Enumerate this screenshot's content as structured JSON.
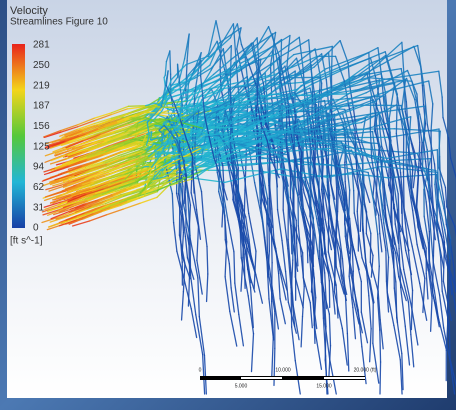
{
  "legend": {
    "title": "Velocity",
    "subtitle": "Streamlines Figure 10",
    "ticks": [
      "281",
      "250",
      "219",
      "187",
      "156",
      "125",
      "94",
      "62",
      "31",
      "0"
    ],
    "unit": "[ft s^-1]"
  },
  "scale_bar": {
    "top_labels": [
      "0",
      "10.000",
      "20.000 (ft)"
    ],
    "bottom_labels": [
      "5.000",
      "15.000"
    ]
  }
}
